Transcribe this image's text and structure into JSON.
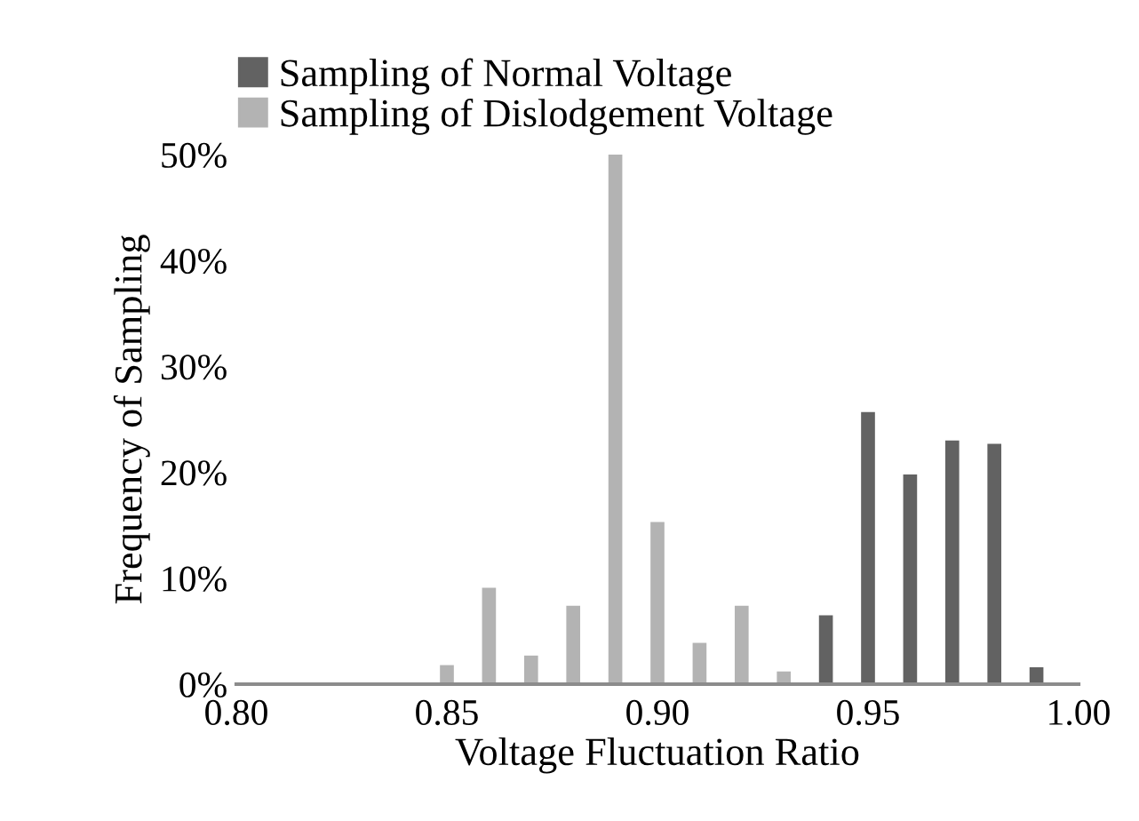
{
  "chart_data": {
    "type": "bar",
    "xlabel": "Voltage Fluctuation Ratio",
    "ylabel": "Frequency of Sampling",
    "series": [
      {
        "name": "Sampling of Normal Voltage",
        "color": "#626262",
        "x": [
          0.94,
          0.95,
          0.96,
          0.97,
          0.98,
          0.99
        ],
        "values": [
          6.5,
          25.7,
          19.8,
          23.0,
          22.7,
          1.6
        ]
      },
      {
        "name": "Sampling of Dislodgement Voltage",
        "color": "#b3b3b3",
        "x": [
          0.85,
          0.86,
          0.87,
          0.88,
          0.89,
          0.9,
          0.91,
          0.92,
          0.93
        ],
        "values": [
          1.8,
          9.1,
          2.7,
          7.4,
          50,
          15.3,
          3.9,
          7.4,
          1.2
        ]
      }
    ],
    "xlim": [
      0.8,
      1.0
    ],
    "xticks": [
      {
        "value": 0.8,
        "label": "0.80"
      },
      {
        "value": 0.85,
        "label": "0.85"
      },
      {
        "value": 0.9,
        "label": "0.90"
      },
      {
        "value": 0.95,
        "label": "0.95"
      },
      {
        "value": 1.0,
        "label": "1.00"
      }
    ],
    "ylim": [
      0,
      50
    ],
    "yticks": [
      {
        "value": 0,
        "label": "0%"
      },
      {
        "value": 10,
        "label": "10%"
      },
      {
        "value": 20,
        "label": "20%"
      },
      {
        "value": 30,
        "label": "30%"
      },
      {
        "value": 40,
        "label": "40%"
      },
      {
        "value": 50,
        "label": "50%"
      }
    ],
    "grid": false,
    "legend": "top"
  }
}
